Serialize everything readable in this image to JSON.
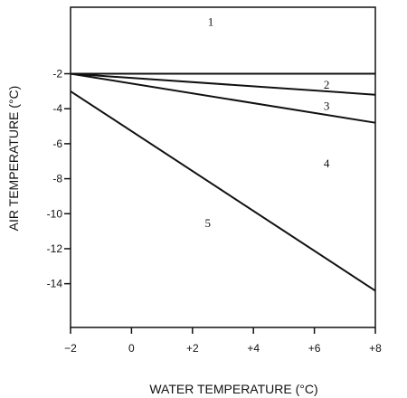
{
  "chart_data": {
    "type": "line",
    "title": "",
    "xlabel": "WATER TEMPERATURE (°C)",
    "ylabel": "AIR TEMPERATURE (°C)",
    "xlim": [
      -2,
      8
    ],
    "ylim": [
      -16.5,
      1.8
    ],
    "x_ticks": [
      {
        "value": -2,
        "label": "−2"
      },
      {
        "value": 0,
        "label": "0"
      },
      {
        "value": 2,
        "label": "+2"
      },
      {
        "value": 4,
        "label": "+4"
      },
      {
        "value": 6,
        "label": "+6"
      },
      {
        "value": 8,
        "label": "+8"
      }
    ],
    "y_ticks": [
      {
        "value": -2,
        "label": "-2"
      },
      {
        "value": -4,
        "label": "-4"
      },
      {
        "value": -6,
        "label": "-6"
      },
      {
        "value": -8,
        "label": "-8"
      },
      {
        "value": -10,
        "label": "-10"
      },
      {
        "value": -12,
        "label": "-12"
      },
      {
        "value": -14,
        "label": "-14"
      }
    ],
    "grid": false,
    "series": [
      {
        "x": [
          -2,
          8
        ],
        "y": [
          -2,
          -2
        ]
      },
      {
        "x": [
          -2,
          8
        ],
        "y": [
          -2,
          -3.2
        ]
      },
      {
        "x": [
          -2,
          8
        ],
        "y": [
          -2,
          -4.8
        ]
      },
      {
        "x": [
          -2,
          8
        ],
        "y": [
          -3,
          -14.4
        ]
      }
    ],
    "region_labels": [
      {
        "label": "1",
        "x": 2.6,
        "y": 0.9
      },
      {
        "label": "2",
        "x": 6.4,
        "y": -2.7
      },
      {
        "label": "3",
        "x": 6.4,
        "y": -3.9
      },
      {
        "label": "4",
        "x": 6.4,
        "y": -7.2
      },
      {
        "label": "5",
        "x": 2.5,
        "y": -10.6
      }
    ],
    "line_color": "#111111"
  }
}
